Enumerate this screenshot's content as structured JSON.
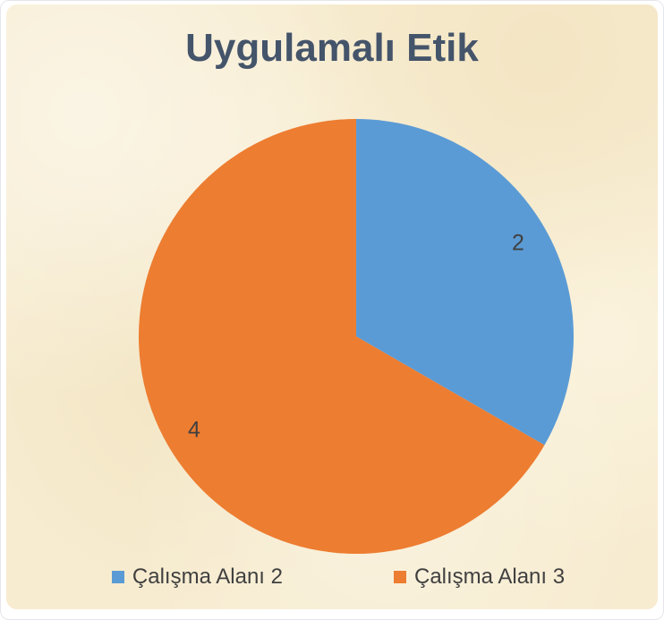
{
  "chart_data": {
    "type": "pie",
    "title": "Uygulamalı Etik",
    "labels": [
      "Çalışma Alanı 2",
      "Çalışma Alanı 3"
    ],
    "values": [
      2,
      4
    ],
    "data_labels": [
      "2",
      "4"
    ],
    "colors": [
      "#5B9BD5",
      "#ED7D31"
    ],
    "total": 6,
    "start_angle_deg": 0,
    "direction": "clockwise",
    "legend_position": "bottom",
    "grid": false
  },
  "legend": {
    "items": [
      {
        "label": "Çalışma Alanı 2",
        "color": "#5B9BD5"
      },
      {
        "label": "Çalışma Alanı 3",
        "color": "#ED7D31"
      }
    ]
  },
  "colors": {
    "title_text": "#44546A",
    "label_text": "#404040",
    "card_background": "#f7ecd0",
    "page_background": "#ffffff"
  }
}
